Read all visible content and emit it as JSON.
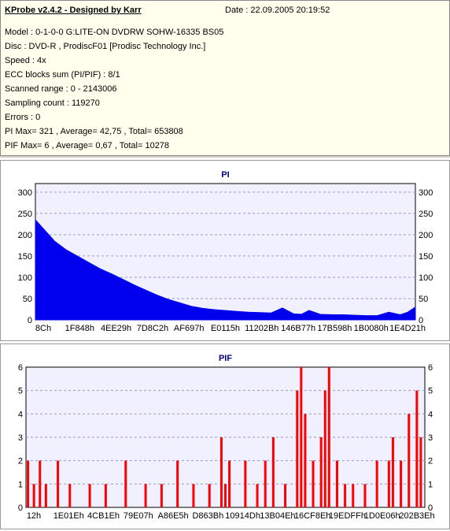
{
  "header": {
    "title": "KProbe v2.4.2 - Designed by Karr",
    "date": "Date : 22.09.2005 20:19:52",
    "model": "Model : 0-1-0-0 G:LITE-ON DVDRW SOHW-16335 BS05",
    "disc": "Disc : DVD-R , ProdiscF01 [Prodisc Technology Inc.]",
    "speed": "Speed : 4x",
    "ecc": "ECC blocks sum (PI/PIF) : 8/1",
    "scanned": "Scanned range : 0 - 2143006",
    "sampling": "Sampling count : 119270",
    "errors": "Errors : 0",
    "pi_summary": "PI Max= 321 , Average= 42,75 , Total= 653808",
    "pif_summary": "PIF Max= 6 , Average= 0,67 , Total= 10278"
  },
  "colors": {
    "panel_bg": "#f0f0ff",
    "pi_fill": "#0000ee",
    "pif_fill": "#ff0000",
    "title_color": "#000080",
    "grid": "#9999cc"
  },
  "chart_data": [
    {
      "type": "area",
      "title": "PI",
      "xlabel": "",
      "ylabel": "",
      "ylim": [
        0,
        320
      ],
      "yticks": [
        0,
        50,
        100,
        150,
        200,
        250,
        300
      ],
      "x_tick_labels": [
        "8Ch",
        "1F848h",
        "4EE29h",
        "7D8C2h",
        "AF697h",
        "E0115h",
        "11202Bh",
        "146B77h",
        "17B598h",
        "1B0080h",
        "1E4D21h"
      ],
      "x": [
        0,
        0.02,
        0.05,
        0.08,
        0.11,
        0.14,
        0.17,
        0.2,
        0.23,
        0.26,
        0.29,
        0.32,
        0.35,
        0.38,
        0.41,
        0.44,
        0.47,
        0.5,
        0.53,
        0.56,
        0.59,
        0.62,
        0.65,
        0.68,
        0.7,
        0.72,
        0.75,
        0.78,
        0.81,
        0.84,
        0.87,
        0.9,
        0.93,
        0.96,
        0.98,
        1.0
      ],
      "values": [
        235,
        215,
        185,
        165,
        150,
        135,
        120,
        108,
        95,
        82,
        70,
        58,
        48,
        40,
        32,
        27,
        24,
        22,
        20,
        18,
        17,
        16,
        28,
        14,
        13,
        22,
        13,
        12,
        12,
        11,
        10,
        10,
        18,
        12,
        18,
        30
      ],
      "grid": true
    },
    {
      "type": "bar",
      "title": "PIF",
      "xlabel": "",
      "ylabel": "",
      "ylim": [
        0,
        6
      ],
      "yticks": [
        0,
        1,
        2,
        3,
        4,
        5,
        6
      ],
      "x_tick_labels": [
        "12h",
        "1E01Eh",
        "4CB1Eh",
        "79E07h",
        "A86E5h",
        "D863Bh",
        "10914Dh",
        "13B04Eh",
        "16CF8Eh",
        "19EDFFh",
        "1D0E06h",
        "202B3Eh"
      ],
      "x": [
        0.005,
        0.02,
        0.035,
        0.05,
        0.08,
        0.11,
        0.16,
        0.2,
        0.25,
        0.3,
        0.34,
        0.38,
        0.42,
        0.46,
        0.49,
        0.5,
        0.51,
        0.55,
        0.58,
        0.6,
        0.62,
        0.65,
        0.68,
        0.69,
        0.7,
        0.72,
        0.74,
        0.75,
        0.76,
        0.78,
        0.8,
        0.82,
        0.85,
        0.88,
        0.91,
        0.92,
        0.94,
        0.96,
        0.98,
        0.99
      ],
      "values": [
        2,
        1,
        2,
        1,
        2,
        1,
        1,
        1,
        2,
        1,
        1,
        2,
        1,
        1,
        3,
        1,
        2,
        2,
        1,
        2,
        3,
        1,
        5,
        6,
        4,
        2,
        3,
        5,
        6,
        2,
        1,
        1,
        1,
        2,
        2,
        3,
        2,
        4,
        5,
        3
      ],
      "grid": true
    }
  ]
}
